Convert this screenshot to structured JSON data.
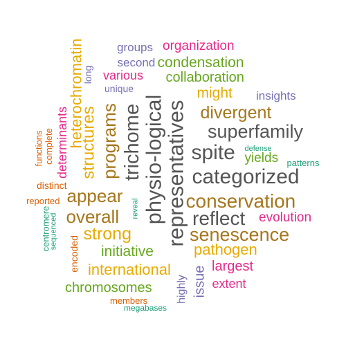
{
  "palette": {
    "orange": "#D95F02",
    "purple": "#7570B3",
    "pink": "#E7298A",
    "green": "#66A61E",
    "gold": "#E6AB02",
    "brown": "#A6761D",
    "teal": "#1B9E77",
    "gray": "#666666",
    "dark": "#555555"
  },
  "words": [
    {
      "text": "groups",
      "color": "purple",
      "vertical": false
    },
    {
      "text": "organization",
      "color": "pink",
      "vertical": false
    },
    {
      "text": "second",
      "color": "purple",
      "vertical": false
    },
    {
      "text": "condensation",
      "color": "green",
      "vertical": false
    },
    {
      "text": "various",
      "color": "pink",
      "vertical": false
    },
    {
      "text": "collaboration",
      "color": "green",
      "vertical": false
    },
    {
      "text": "unique",
      "color": "purple",
      "vertical": false
    },
    {
      "text": "might",
      "color": "gold",
      "vertical": false
    },
    {
      "text": "insights",
      "color": "purple",
      "vertical": false
    },
    {
      "text": "divergent",
      "color": "brown",
      "vertical": false
    },
    {
      "text": "superfamily",
      "color": "dark",
      "vertical": false
    },
    {
      "text": "spite",
      "color": "dark",
      "vertical": false
    },
    {
      "text": "defense",
      "color": "teal",
      "vertical": false
    },
    {
      "text": "yields",
      "color": "green",
      "vertical": false
    },
    {
      "text": "patterns",
      "color": "teal",
      "vertical": false
    },
    {
      "text": "categorized",
      "color": "dark",
      "vertical": false
    },
    {
      "text": "distinct",
      "color": "orange",
      "vertical": false
    },
    {
      "text": "appear",
      "color": "brown",
      "vertical": false
    },
    {
      "text": "conservation",
      "color": "brown",
      "vertical": false
    },
    {
      "text": "reported",
      "color": "orange",
      "vertical": false
    },
    {
      "text": "overall",
      "color": "brown",
      "vertical": false
    },
    {
      "text": "reflect",
      "color": "dark",
      "vertical": false
    },
    {
      "text": "evolution",
      "color": "pink",
      "vertical": false
    },
    {
      "text": "strong",
      "color": "gold",
      "vertical": false
    },
    {
      "text": "senescence",
      "color": "brown",
      "vertical": false
    },
    {
      "text": "initiative",
      "color": "green",
      "vertical": false
    },
    {
      "text": "pathogen",
      "color": "gold",
      "vertical": false
    },
    {
      "text": "largest",
      "color": "pink",
      "vertical": false
    },
    {
      "text": "international",
      "color": "gold",
      "vertical": false
    },
    {
      "text": "extent",
      "color": "pink",
      "vertical": false
    },
    {
      "text": "chromosomes",
      "color": "green",
      "vertical": false
    },
    {
      "text": "members",
      "color": "orange",
      "vertical": false
    },
    {
      "text": "megabases",
      "color": "teal",
      "vertical": false
    },
    {
      "text": "heterochromatin",
      "color": "gold",
      "vertical": true
    },
    {
      "text": "long",
      "color": "purple",
      "vertical": true
    },
    {
      "text": "determinants",
      "color": "pink",
      "vertical": true
    },
    {
      "text": "structures",
      "color": "gold",
      "vertical": true
    },
    {
      "text": "programs",
      "color": "brown",
      "vertical": true
    },
    {
      "text": "trichome",
      "color": "dark",
      "vertical": true
    },
    {
      "text": "physio-logical",
      "color": "dark",
      "vertical": true
    },
    {
      "text": "representatives",
      "color": "dark",
      "vertical": true
    },
    {
      "text": "complete",
      "color": "orange",
      "vertical": true
    },
    {
      "text": "functions",
      "color": "orange",
      "vertical": true
    },
    {
      "text": "centromere",
      "color": "teal",
      "vertical": true
    },
    {
      "text": "sequenced",
      "color": "teal",
      "vertical": true
    },
    {
      "text": "encoded",
      "color": "orange",
      "vertical": true
    },
    {
      "text": "reveal",
      "color": "teal",
      "vertical": true
    },
    {
      "text": "issue",
      "color": "purple",
      "vertical": true
    },
    {
      "text": "highly",
      "color": "purple",
      "vertical": true
    }
  ]
}
